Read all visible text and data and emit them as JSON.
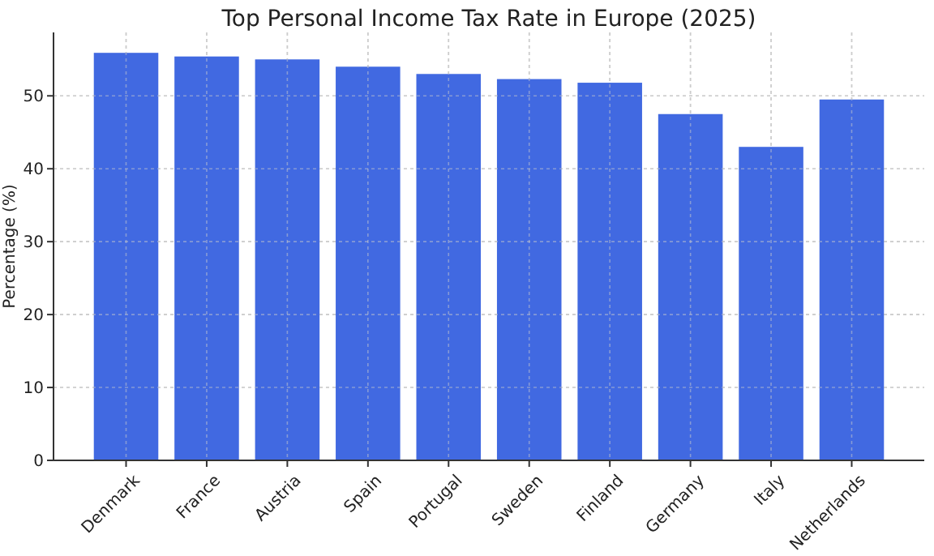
{
  "chart_data": {
    "type": "bar",
    "title": "Top Personal Income Tax Rate in Europe (2025)",
    "ylabel": "Percentage (%)",
    "categories": [
      "Denmark",
      "France",
      "Austria",
      "Spain",
      "Portugal",
      "Sweden",
      "Finland",
      "Germany",
      "Italy",
      "Netherlands"
    ],
    "values": [
      55.9,
      55.4,
      55,
      54,
      53,
      52.3,
      51.8,
      47.5,
      43,
      49.5
    ],
    "color": "#4169e1",
    "ylim": [
      0,
      58.7
    ],
    "yticks": [
      0,
      10,
      20,
      30,
      40,
      50
    ],
    "grid": true
  }
}
